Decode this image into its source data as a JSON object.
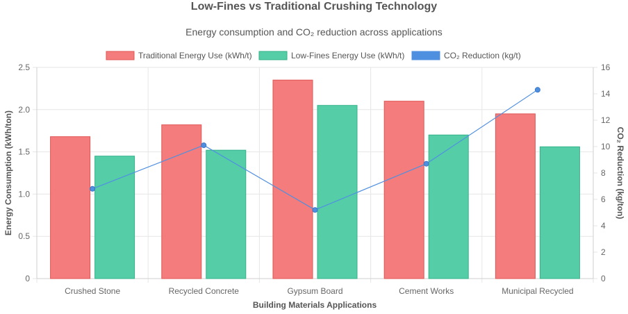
{
  "chart_data": {
    "type": "bar",
    "title": "Low-Fines vs Traditional Crushing Technology",
    "subtitle": "Energy consumption and CO₂ reduction across applications",
    "xlabel": "Building Materials Applications",
    "ylabel": "Energy Consumption (kWh/ton)",
    "y2label": "CO₂ Reduction (kg/ton)",
    "ylim": [
      0,
      2.5
    ],
    "y2lim": [
      0,
      16
    ],
    "yticks": [
      "0",
      "0.5",
      "1.0",
      "1.5",
      "2.0",
      "2.5"
    ],
    "y2ticks": [
      "0",
      "2",
      "4",
      "6",
      "8",
      "10",
      "12",
      "14",
      "16"
    ],
    "categories": [
      "Crushed Stone",
      "Recycled Concrete",
      "Gypsum Board",
      "Cement Works",
      "Municipal Recycled"
    ],
    "series": [
      {
        "name": "Traditional Energy Use (kWh/t)",
        "type": "bar",
        "axis": "left",
        "color": "#f47c7c",
        "border": "#e05555",
        "values": [
          1.68,
          1.82,
          2.35,
          2.1,
          1.95
        ]
      },
      {
        "name": "Low-Fines Energy Use (kWh/t)",
        "type": "bar",
        "axis": "left",
        "color": "#55cea8",
        "border": "#34b28a",
        "values": [
          1.45,
          1.52,
          2.05,
          1.7,
          1.56
        ]
      },
      {
        "name": "CO₂ Reduction (kg/t)",
        "type": "line",
        "axis": "right",
        "color": "#4f8fe0",
        "values": [
          6.8,
          10.1,
          5.2,
          8.7,
          14.3
        ]
      }
    ],
    "legend_position": "top"
  }
}
